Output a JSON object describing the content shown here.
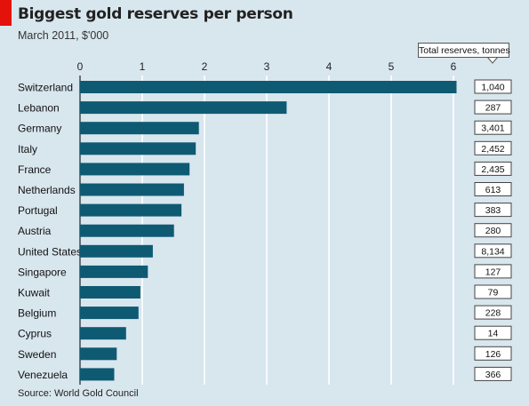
{
  "chart_data": {
    "type": "bar",
    "orientation": "horizontal",
    "title": "Biggest gold reserves per person",
    "subtitle": "March 2011, $'000",
    "source": "Source: World Gold Council",
    "categories": [
      "Switzerland",
      "Lebanon",
      "Germany",
      "Italy",
      "France",
      "Netherlands",
      "Portugal",
      "Austria",
      "United States",
      "Singapore",
      "Kuwait",
      "Belgium",
      "Cyprus",
      "Sweden",
      "Venezuela"
    ],
    "values": [
      6.05,
      3.32,
      1.91,
      1.86,
      1.76,
      1.67,
      1.63,
      1.51,
      1.17,
      1.09,
      0.97,
      0.94,
      0.74,
      0.59,
      0.55
    ],
    "xlim": [
      0,
      6.2
    ],
    "xticks": [
      "0",
      "1",
      "2",
      "3",
      "4",
      "5",
      "6"
    ],
    "grid": true,
    "bar_color": "#0e5a73",
    "annotation_header": "Total reserves, tonnes",
    "annotations": [
      "1,040",
      "287",
      "3,401",
      "2,452",
      "2,435",
      "613",
      "383",
      "280",
      "8,134",
      "127",
      "79",
      "228",
      "14",
      "126",
      "366"
    ]
  }
}
